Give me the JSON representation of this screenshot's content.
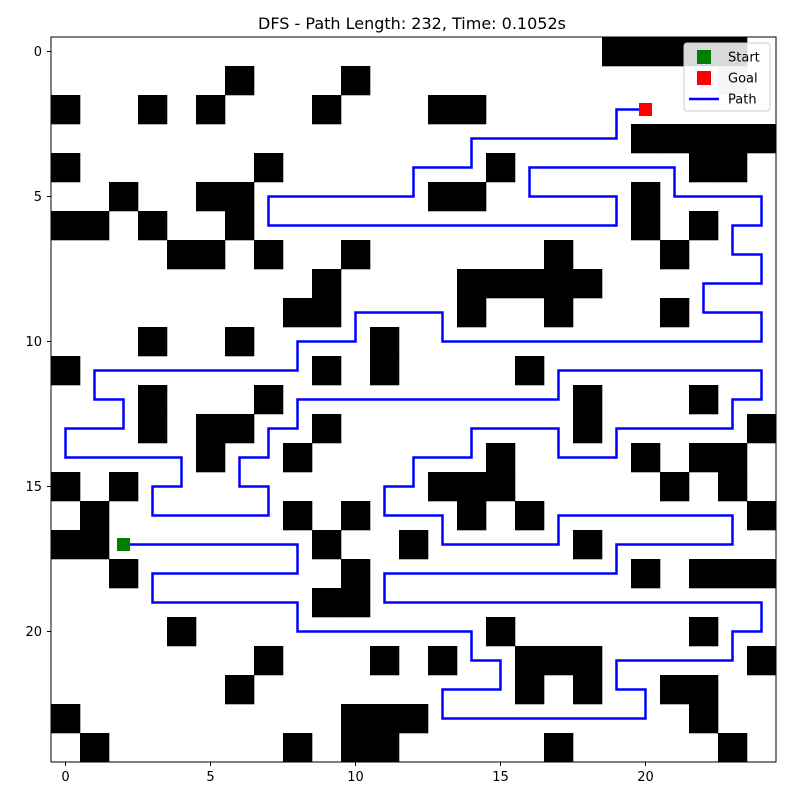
{
  "chart_data": {
    "type": "heatmap",
    "title": "DFS - Path Length: 232, Time: 0.1052s",
    "grid": false,
    "legend_placement": "top-right",
    "xticks": [
      0,
      5,
      10,
      15,
      20
    ],
    "yticks": [
      0,
      5,
      10,
      15,
      20
    ],
    "grid_size": [
      25,
      25
    ],
    "start": [
      2,
      17
    ],
    "goal": [
      20,
      2
    ],
    "start_color": "#008000",
    "goal_color": "#ff0000",
    "path_color": "#0000ff",
    "wall_color": "#000000",
    "visited_color": "#c0c0c0",
    "legend": [
      {
        "label": "Start",
        "kind": "start"
      },
      {
        "label": "Goal",
        "kind": "goal"
      },
      {
        "label": "Path",
        "kind": "path"
      }
    ],
    "obstacles": [
      [
        19,
        0
      ],
      [
        20,
        0
      ],
      [
        21,
        0
      ],
      [
        22,
        0
      ],
      [
        23,
        0
      ],
      [
        6,
        1
      ],
      [
        10,
        1
      ],
      [
        0,
        2
      ],
      [
        3,
        2
      ],
      [
        5,
        2
      ],
      [
        9,
        2
      ],
      [
        13,
        2
      ],
      [
        14,
        2
      ],
      [
        20,
        3
      ],
      [
        21,
        3
      ],
      [
        22,
        3
      ],
      [
        23,
        3
      ],
      [
        24,
        3
      ],
      [
        0,
        4
      ],
      [
        7,
        4
      ],
      [
        15,
        4
      ],
      [
        22,
        4
      ],
      [
        23,
        4
      ],
      [
        2,
        5
      ],
      [
        5,
        5
      ],
      [
        6,
        5
      ],
      [
        13,
        5
      ],
      [
        14,
        5
      ],
      [
        20,
        5
      ],
      [
        0,
        6
      ],
      [
        1,
        6
      ],
      [
        3,
        6
      ],
      [
        6,
        6
      ],
      [
        20,
        6
      ],
      [
        22,
        6
      ],
      [
        4,
        7
      ],
      [
        5,
        7
      ],
      [
        7,
        7
      ],
      [
        10,
        7
      ],
      [
        17,
        7
      ],
      [
        21,
        7
      ],
      [
        9,
        8
      ],
      [
        14,
        8
      ],
      [
        15,
        8
      ],
      [
        16,
        8
      ],
      [
        17,
        8
      ],
      [
        18,
        8
      ],
      [
        8,
        9
      ],
      [
        9,
        9
      ],
      [
        14,
        9
      ],
      [
        17,
        9
      ],
      [
        21,
        9
      ],
      [
        3,
        10
      ],
      [
        6,
        10
      ],
      [
        11,
        10
      ],
      [
        0,
        11
      ],
      [
        9,
        11
      ],
      [
        11,
        11
      ],
      [
        16,
        11
      ],
      [
        3,
        12
      ],
      [
        7,
        12
      ],
      [
        18,
        12
      ],
      [
        22,
        12
      ],
      [
        3,
        13
      ],
      [
        5,
        13
      ],
      [
        6,
        13
      ],
      [
        9,
        13
      ],
      [
        18,
        13
      ],
      [
        24,
        13
      ],
      [
        5,
        14
      ],
      [
        8,
        14
      ],
      [
        15,
        14
      ],
      [
        20,
        14
      ],
      [
        22,
        14
      ],
      [
        23,
        14
      ],
      [
        0,
        15
      ],
      [
        2,
        15
      ],
      [
        13,
        15
      ],
      [
        14,
        15
      ],
      [
        15,
        15
      ],
      [
        21,
        15
      ],
      [
        23,
        15
      ],
      [
        1,
        16
      ],
      [
        8,
        16
      ],
      [
        10,
        16
      ],
      [
        14,
        16
      ],
      [
        16,
        16
      ],
      [
        24,
        16
      ],
      [
        0,
        17
      ],
      [
        1,
        17
      ],
      [
        9,
        17
      ],
      [
        12,
        17
      ],
      [
        18,
        17
      ],
      [
        2,
        18
      ],
      [
        10,
        18
      ],
      [
        20,
        18
      ],
      [
        22,
        18
      ],
      [
        23,
        18
      ],
      [
        24,
        18
      ],
      [
        9,
        19
      ],
      [
        10,
        19
      ],
      [
        4,
        20
      ],
      [
        15,
        20
      ],
      [
        22,
        20
      ],
      [
        7,
        21
      ],
      [
        11,
        21
      ],
      [
        13,
        21
      ],
      [
        16,
        21
      ],
      [
        17,
        21
      ],
      [
        18,
        21
      ],
      [
        24,
        21
      ],
      [
        6,
        22
      ],
      [
        16,
        22
      ],
      [
        18,
        22
      ],
      [
        21,
        22
      ],
      [
        22,
        22
      ],
      [
        0,
        23
      ],
      [
        10,
        23
      ],
      [
        11,
        23
      ],
      [
        12,
        23
      ],
      [
        22,
        23
      ],
      [
        1,
        24
      ],
      [
        8,
        24
      ],
      [
        10,
        24
      ],
      [
        11,
        24
      ],
      [
        17,
        24
      ],
      [
        23,
        24
      ]
    ],
    "visited": [
      [
        23,
        1
      ]
    ],
    "path": [
      [
        2,
        17
      ],
      [
        8,
        17
      ],
      [
        8,
        18
      ],
      [
        3,
        18
      ],
      [
        3,
        19
      ],
      [
        8,
        19
      ],
      [
        8,
        20
      ],
      [
        14,
        20
      ],
      [
        14,
        21
      ],
      [
        15,
        21
      ],
      [
        15,
        22
      ],
      [
        13,
        22
      ],
      [
        13,
        23
      ],
      [
        20,
        23
      ],
      [
        20,
        22
      ],
      [
        19,
        22
      ],
      [
        19,
        21
      ],
      [
        23,
        21
      ],
      [
        23,
        20
      ],
      [
        24,
        20
      ],
      [
        24,
        19
      ],
      [
        11,
        19
      ],
      [
        11,
        18
      ],
      [
        19,
        18
      ],
      [
        19,
        17
      ],
      [
        23,
        17
      ],
      [
        23,
        16
      ],
      [
        17,
        16
      ],
      [
        17,
        17
      ],
      [
        13,
        17
      ],
      [
        13,
        16
      ],
      [
        11,
        16
      ],
      [
        11,
        15
      ],
      [
        12,
        15
      ],
      [
        12,
        14
      ],
      [
        14,
        14
      ],
      [
        14,
        13
      ],
      [
        17,
        13
      ],
      [
        17,
        14
      ],
      [
        19,
        14
      ],
      [
        19,
        13
      ],
      [
        23,
        13
      ],
      [
        23,
        12
      ],
      [
        24,
        12
      ],
      [
        24,
        11
      ],
      [
        17,
        11
      ],
      [
        17,
        12
      ],
      [
        8,
        12
      ],
      [
        8,
        13
      ],
      [
        7,
        13
      ],
      [
        7,
        14
      ],
      [
        6,
        14
      ],
      [
        6,
        15
      ],
      [
        7,
        15
      ],
      [
        7,
        16
      ],
      [
        3,
        16
      ],
      [
        3,
        15
      ],
      [
        4,
        15
      ],
      [
        4,
        14
      ],
      [
        0,
        14
      ],
      [
        0,
        13
      ],
      [
        2,
        13
      ],
      [
        2,
        12
      ],
      [
        1,
        12
      ],
      [
        1,
        11
      ],
      [
        8,
        11
      ],
      [
        8,
        10
      ],
      [
        10,
        10
      ],
      [
        10,
        9
      ],
      [
        13,
        9
      ],
      [
        13,
        10
      ],
      [
        24,
        10
      ],
      [
        24,
        9
      ],
      [
        22,
        9
      ],
      [
        22,
        8
      ],
      [
        24,
        8
      ],
      [
        24,
        7
      ],
      [
        23,
        7
      ],
      [
        23,
        6
      ],
      [
        24,
        6
      ],
      [
        24,
        5
      ],
      [
        21,
        5
      ],
      [
        21,
        4
      ],
      [
        16,
        4
      ],
      [
        16,
        5
      ],
      [
        19,
        5
      ],
      [
        19,
        6
      ],
      [
        7,
        6
      ],
      [
        7,
        5
      ],
      [
        12,
        5
      ],
      [
        12,
        4
      ],
      [
        14,
        4
      ],
      [
        14,
        3
      ],
      [
        19,
        3
      ],
      [
        19,
        2
      ],
      [
        20,
        2
      ]
    ]
  }
}
